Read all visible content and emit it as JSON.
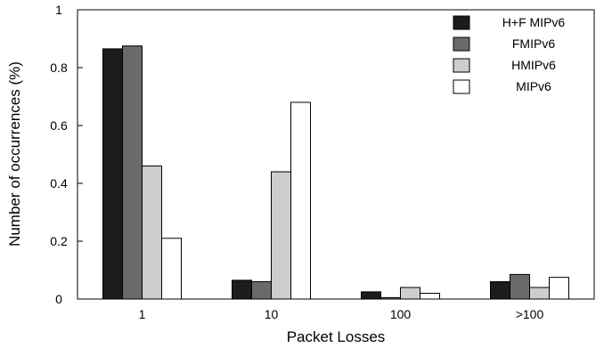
{
  "chart_data": {
    "type": "bar",
    "title": "",
    "xlabel": "Packet Losses",
    "ylabel": "Number of occurrences (%)",
    "categories": [
      "1",
      "10",
      "100",
      ">100"
    ],
    "ylim": [
      0,
      1
    ],
    "yticks": [
      "0",
      "0.2",
      "0.4",
      "0.6",
      "0.8",
      "1"
    ],
    "grid": false,
    "legend_position": "top-right",
    "series": [
      {
        "name": "H+F MIPv6",
        "color": "#1c1c1c",
        "values": [
          0.865,
          0.065,
          0.025,
          0.06
        ]
      },
      {
        "name": "FMIPv6",
        "color": "#6a6a6a",
        "values": [
          0.875,
          0.06,
          0.005,
          0.085
        ]
      },
      {
        "name": "HMIPv6",
        "color": "#cdcdcd",
        "values": [
          0.46,
          0.44,
          0.04,
          0.04
        ]
      },
      {
        "name": "MIPv6",
        "color": "#ffffff",
        "values": [
          0.21,
          0.68,
          0.02,
          0.075
        ]
      }
    ]
  }
}
